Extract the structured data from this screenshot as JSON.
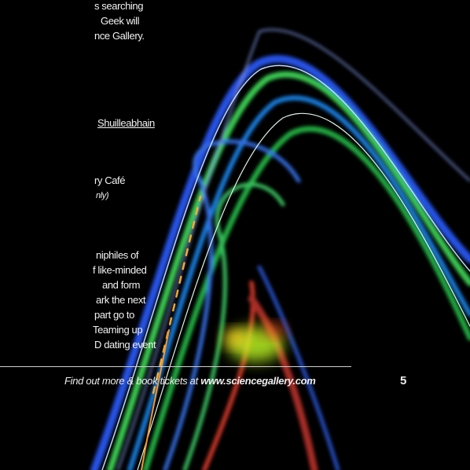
{
  "text_lines": [
    "s searching",
    "Geek will",
    "nce Gallery."
  ],
  "link": "Shuilleabhain",
  "event": {
    "title": "ry Café",
    "note": "nly)"
  },
  "paragraph": [
    "niphiles of",
    "f like-minded",
    "and form",
    "ark the next",
    "part go to",
    "Teaming up",
    "D dating event"
  ],
  "footer": {
    "prefix": "Find out more & book tickets at",
    "url": "www.sciencegallery.com"
  },
  "page_number": "5"
}
